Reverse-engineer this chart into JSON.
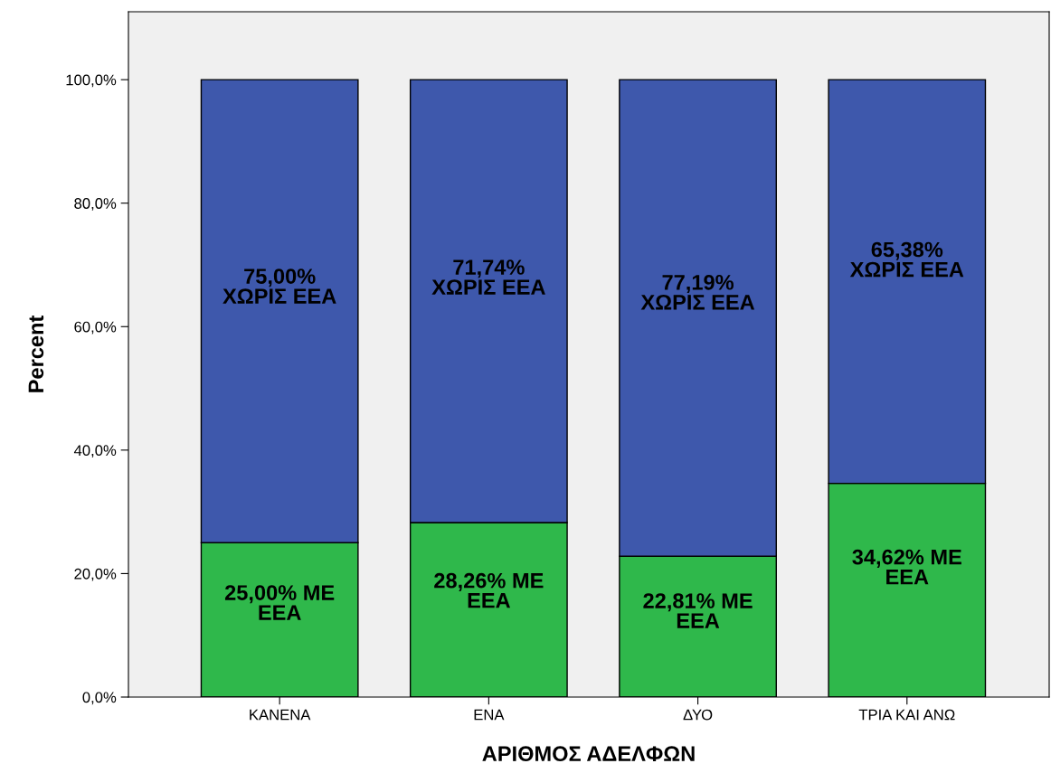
{
  "chart_data": {
    "type": "bar",
    "stacked": true,
    "xlabel": "ΑΡΙΘΜΟΣ ΑΔΕΛΦΩΝ",
    "ylabel": "Percent",
    "categories": [
      "ΚΑΝΕΝΑ",
      "ΕΝΑ",
      "ΔΥΟ",
      "ΤΡΙΑ ΚΑΙ ΑΝΩ"
    ],
    "series": [
      {
        "color": "#2fb84b",
        "values": [
          25.0,
          28.26,
          22.81,
          34.62
        ],
        "value_labels": [
          "25,00% ΜΕ\nΕΕΑ",
          "28,26% ΜΕ\nΕΕΑ",
          "22,81% ΜΕ\nΕΕΑ",
          "34,62% ΜΕ\nΕΕΑ"
        ]
      },
      {
        "color": "#3e58ac",
        "values": [
          75.0,
          71.74,
          77.19,
          65.38
        ],
        "value_labels": [
          "75,00%\nΧΩΡΙΣ ΕΕΑ",
          "71,74%\nΧΩΡΙΣ ΕΕΑ",
          "77,19%\nΧΩΡΙΣ ΕΕΑ",
          "65,38%\nΧΩΡΙΣ ΕΕΑ"
        ]
      }
    ],
    "ylim": [
      0,
      111
    ],
    "yticks": [
      {
        "value": 0,
        "label": "0,0%"
      },
      {
        "value": 20,
        "label": "20,0%"
      },
      {
        "value": 40,
        "label": "40,0%"
      },
      {
        "value": 60,
        "label": "60,0%"
      },
      {
        "value": 80,
        "label": "80,0%"
      },
      {
        "value": 100,
        "label": "100,0%"
      }
    ],
    "grid": false
  }
}
